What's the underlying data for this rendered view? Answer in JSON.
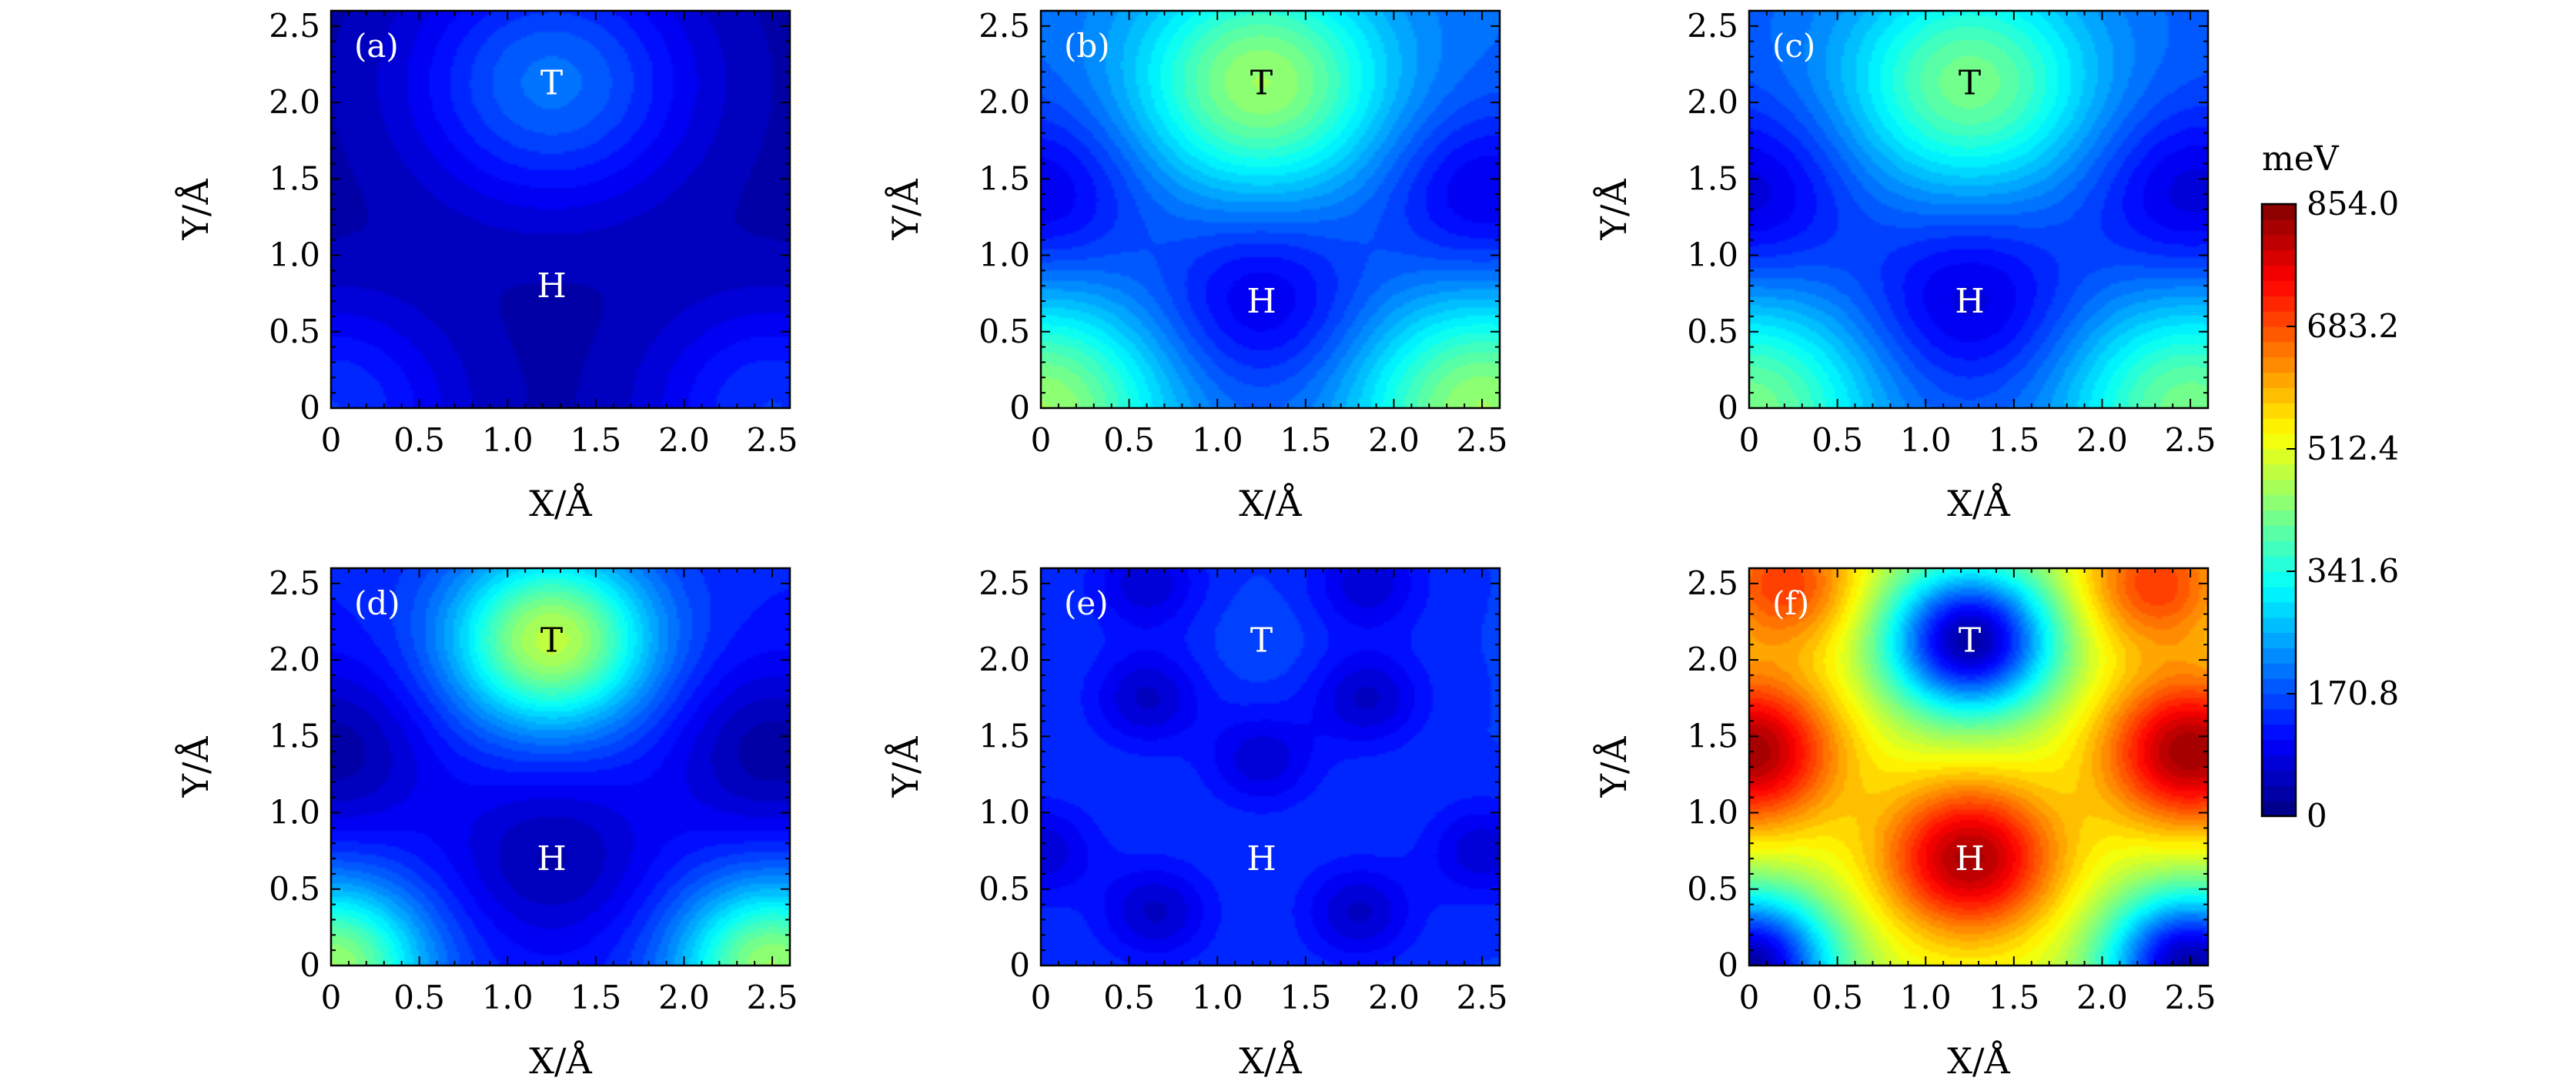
{
  "chart_data": [
    {
      "type": "heatmap",
      "panel_label": "(a)",
      "xlabel": "X/Å",
      "ylabel": "Y/Å",
      "xlim": [
        0,
        2.6
      ],
      "ylim": [
        0,
        2.6
      ],
      "x_ticks": [
        "0",
        "0.5",
        "1.0",
        "1.5",
        "2.0",
        "2.5"
      ],
      "y_ticks": [
        "0",
        "0.5",
        "1.0",
        "1.5",
        "2.0",
        "2.5"
      ],
      "annotations": [
        {
          "text": "T",
          "x": 1.25,
          "y": 2.13
        },
        {
          "text": "H",
          "x": 1.25,
          "y": 0.8
        }
      ],
      "features": [
        {
          "x": 1.25,
          "y": 2.13,
          "value": 170,
          "sigma": 0.55
        },
        {
          "x": 0.0,
          "y": 0.0,
          "value": 120,
          "sigma": 0.5
        },
        {
          "x": 2.5,
          "y": 0.0,
          "value": 120,
          "sigma": 0.5
        }
      ],
      "background": 30
    },
    {
      "type": "heatmap",
      "panel_label": "(b)",
      "xlabel": "X/Å",
      "ylabel": "Y/Å",
      "xlim": [
        0,
        2.6
      ],
      "ylim": [
        0,
        2.6
      ],
      "x_ticks": [
        "0",
        "0.5",
        "1.0",
        "1.5",
        "2.0",
        "2.5"
      ],
      "y_ticks": [
        "0",
        "0.5",
        "1.0",
        "1.5",
        "2.0",
        "2.5"
      ],
      "annotations": [
        {
          "text": "T",
          "x": 1.25,
          "y": 2.13
        },
        {
          "text": "H",
          "x": 1.25,
          "y": 0.7
        }
      ],
      "features": [
        {
          "x": 1.25,
          "y": 2.13,
          "value": 260,
          "sigma": 0.5
        },
        {
          "x": 0.0,
          "y": 0.0,
          "value": 260,
          "sigma": 0.5
        },
        {
          "x": 2.5,
          "y": 0.0,
          "value": 260,
          "sigma": 0.5
        },
        {
          "x": 1.25,
          "y": 0.7,
          "value": -110,
          "sigma": 0.4
        },
        {
          "x": 0.0,
          "y": 1.4,
          "value": -110,
          "sigma": 0.4
        },
        {
          "x": 2.5,
          "y": 1.4,
          "value": -110,
          "sigma": 0.4
        }
      ],
      "background": 190
    },
    {
      "type": "heatmap",
      "panel_label": "(c)",
      "xlabel": "X/Å",
      "ylabel": "Y/Å",
      "xlim": [
        0,
        2.6
      ],
      "ylim": [
        0,
        2.6
      ],
      "x_ticks": [
        "0",
        "0.5",
        "1.0",
        "1.5",
        "2.0",
        "2.5"
      ],
      "y_ticks": [
        "0",
        "0.5",
        "1.0",
        "1.5",
        "2.0",
        "2.5"
      ],
      "annotations": [
        {
          "text": "T",
          "x": 1.25,
          "y": 2.13
        },
        {
          "text": "H",
          "x": 1.25,
          "y": 0.7
        }
      ],
      "features": [
        {
          "x": 1.25,
          "y": 2.13,
          "value": 240,
          "sigma": 0.5
        },
        {
          "x": 0.0,
          "y": 0.0,
          "value": 240,
          "sigma": 0.5
        },
        {
          "x": 2.5,
          "y": 0.0,
          "value": 240,
          "sigma": 0.5
        },
        {
          "x": 1.25,
          "y": 0.7,
          "value": -110,
          "sigma": 0.4
        },
        {
          "x": 0.0,
          "y": 1.4,
          "value": -110,
          "sigma": 0.4
        },
        {
          "x": 2.5,
          "y": 1.4,
          "value": -110,
          "sigma": 0.4
        }
      ],
      "background": 180
    },
    {
      "type": "heatmap",
      "panel_label": "(d)",
      "xlabel": "X/Å",
      "ylabel": "Y/Å",
      "xlim": [
        0,
        2.6
      ],
      "ylim": [
        0,
        2.6
      ],
      "x_ticks": [
        "0",
        "0.5",
        "1.0",
        "1.5",
        "2.0",
        "2.5"
      ],
      "y_ticks": [
        "0",
        "0.5",
        "1.0",
        "1.5",
        "2.0",
        "2.5"
      ],
      "annotations": [
        {
          "text": "T",
          "x": 1.25,
          "y": 2.13
        },
        {
          "text": "H",
          "x": 1.25,
          "y": 0.7
        }
      ],
      "features": [
        {
          "x": 1.25,
          "y": 2.13,
          "value": 350,
          "sigma": 0.4
        },
        {
          "x": 0.0,
          "y": 0.0,
          "value": 320,
          "sigma": 0.38
        },
        {
          "x": 2.5,
          "y": 0.0,
          "value": 320,
          "sigma": 0.38
        },
        {
          "x": 1.25,
          "y": 0.7,
          "value": -90,
          "sigma": 0.4
        },
        {
          "x": 0.0,
          "y": 1.4,
          "value": -100,
          "sigma": 0.4
        },
        {
          "x": 2.5,
          "y": 1.4,
          "value": -100,
          "sigma": 0.4
        }
      ],
      "background": 130
    },
    {
      "type": "heatmap",
      "panel_label": "(e)",
      "xlabel": "X/Å",
      "ylabel": "Y/Å",
      "xlim": [
        0,
        2.6
      ],
      "ylim": [
        0,
        2.6
      ],
      "x_ticks": [
        "0",
        "0.5",
        "1.0",
        "1.5",
        "2.0",
        "2.5"
      ],
      "y_ticks": [
        "0",
        "0.5",
        "1.0",
        "1.5",
        "2.0",
        "2.5"
      ],
      "annotations": [
        {
          "text": "T",
          "x": 1.25,
          "y": 2.13
        },
        {
          "text": "H",
          "x": 1.25,
          "y": 0.7
        }
      ],
      "features": [
        {
          "x": 0.6,
          "y": 1.75,
          "value": -90,
          "sigma": 0.22
        },
        {
          "x": 1.85,
          "y": 1.75,
          "value": -90,
          "sigma": 0.22
        },
        {
          "x": 1.25,
          "y": 1.35,
          "value": -80,
          "sigma": 0.22
        },
        {
          "x": 0.65,
          "y": 0.35,
          "value": -90,
          "sigma": 0.22
        },
        {
          "x": 1.8,
          "y": 0.35,
          "value": -90,
          "sigma": 0.22
        },
        {
          "x": 0.6,
          "y": 2.5,
          "value": -80,
          "sigma": 0.22
        },
        {
          "x": 1.85,
          "y": 2.5,
          "value": -80,
          "sigma": 0.22
        },
        {
          "x": 0.0,
          "y": 0.75,
          "value": -80,
          "sigma": 0.22
        },
        {
          "x": 2.5,
          "y": 0.75,
          "value": -80,
          "sigma": 0.22
        },
        {
          "x": 1.25,
          "y": 2.13,
          "value": 20,
          "sigma": 0.2
        }
      ],
      "background": 150
    },
    {
      "type": "heatmap",
      "panel_label": "(f)",
      "xlabel": "X/Å",
      "ylabel": "Y/Å",
      "xlim": [
        0,
        2.6
      ],
      "ylim": [
        0,
        2.6
      ],
      "x_ticks": [
        "0",
        "0.5",
        "1.0",
        "1.5",
        "2.0",
        "2.5"
      ],
      "y_ticks": [
        "0",
        "0.5",
        "1.0",
        "1.5",
        "2.0",
        "2.5"
      ],
      "annotations": [
        {
          "text": "T",
          "x": 1.25,
          "y": 2.13
        },
        {
          "text": "H",
          "x": 1.25,
          "y": 0.7
        }
      ],
      "features": [
        {
          "x": 1.25,
          "y": 2.13,
          "value": -470,
          "sigma": 0.33
        },
        {
          "x": 0.0,
          "y": 0.0,
          "value": -470,
          "sigma": 0.33
        },
        {
          "x": 2.5,
          "y": 0.0,
          "value": -470,
          "sigma": 0.33
        },
        {
          "x": 1.25,
          "y": 0.7,
          "value": 320,
          "sigma": 0.35
        },
        {
          "x": 0.0,
          "y": 1.4,
          "value": 330,
          "sigma": 0.35
        },
        {
          "x": 2.5,
          "y": 1.4,
          "value": 330,
          "sigma": 0.35
        },
        {
          "x": 0.2,
          "y": 2.5,
          "value": 200,
          "sigma": 0.3
        },
        {
          "x": 2.3,
          "y": 2.5,
          "value": 200,
          "sigma": 0.3
        }
      ],
      "background": 500
    }
  ],
  "colorbar": {
    "unit_label": "meV",
    "min": 0,
    "max": 854.0,
    "ticks": [
      "0",
      "170.8",
      "341.6",
      "512.4",
      "683.2",
      "854.0"
    ],
    "colormap": "jet",
    "levels": 40
  }
}
